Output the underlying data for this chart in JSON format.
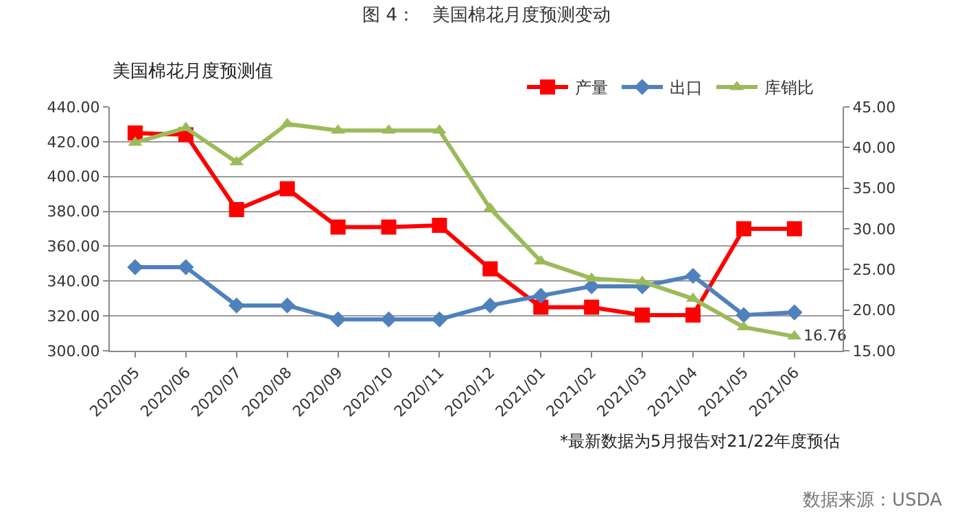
{
  "chart_data": {
    "type": "line",
    "title": "图 4：   美国棉花月度预测变动",
    "subtitle": "美国棉花月度预测值",
    "categories": [
      "2020/05",
      "2020/06",
      "2020/07",
      "2020/08",
      "2020/09",
      "2020/10",
      "2020/11",
      "2020/12",
      "2021/01",
      "2021/02",
      "2021/03",
      "2021/04",
      "2021/05",
      "2021/06"
    ],
    "series": [
      {
        "name": "产量",
        "color": "#ff0000",
        "marker": "square",
        "values": [
          425,
          424,
          381,
          393,
          371,
          371,
          372,
          347,
          325,
          325,
          320.5,
          320.5,
          370,
          370
        ]
      },
      {
        "name": "出口",
        "color": "#4f81bd",
        "marker": "diamond",
        "values": [
          348,
          348,
          326,
          326,
          318,
          318,
          318,
          326,
          331.6,
          337,
          337,
          343,
          320.5,
          322
        ]
      },
      {
        "name": "库销比",
        "color": "#9bbb59",
        "marker": "triangle",
        "axis": "y2",
        "values": [
          40.6,
          42.4,
          38.2,
          42.9,
          42.1,
          42.1,
          42.1,
          32.5,
          26.0,
          23.9,
          23.5,
          21.4,
          17.9,
          16.76
        ],
        "value_labels": [
          null,
          null,
          null,
          null,
          null,
          null,
          null,
          null,
          null,
          null,
          null,
          null,
          null,
          "16.76"
        ]
      }
    ],
    "ylim": [
      300,
      440
    ],
    "yticks": [
      {
        "value": 300,
        "label": "300.00"
      },
      {
        "value": 320,
        "label": "320.00"
      },
      {
        "value": 340,
        "label": "340.00"
      },
      {
        "value": 360,
        "label": "360.00"
      },
      {
        "value": 380,
        "label": "380.00"
      },
      {
        "value": 400,
        "label": "400.00"
      },
      {
        "value": 420,
        "label": "420.00"
      },
      {
        "value": 440,
        "label": "440.00"
      }
    ],
    "y2lim": [
      15,
      45
    ],
    "y2ticks": [
      {
        "value": 15,
        "label": "15.00"
      },
      {
        "value": 20,
        "label": "20.00"
      },
      {
        "value": 25,
        "label": "25.00"
      },
      {
        "value": 30,
        "label": "30.00"
      },
      {
        "value": 35,
        "label": "35.00"
      },
      {
        "value": 40,
        "label": "40.00"
      },
      {
        "value": 45,
        "label": "45.00"
      }
    ],
    "grid": "y",
    "legend": "top",
    "line_style": "solid",
    "annotations": [
      "*最新数据为5月报告对21/22年度预估",
      "数据来源：USDA"
    ]
  }
}
